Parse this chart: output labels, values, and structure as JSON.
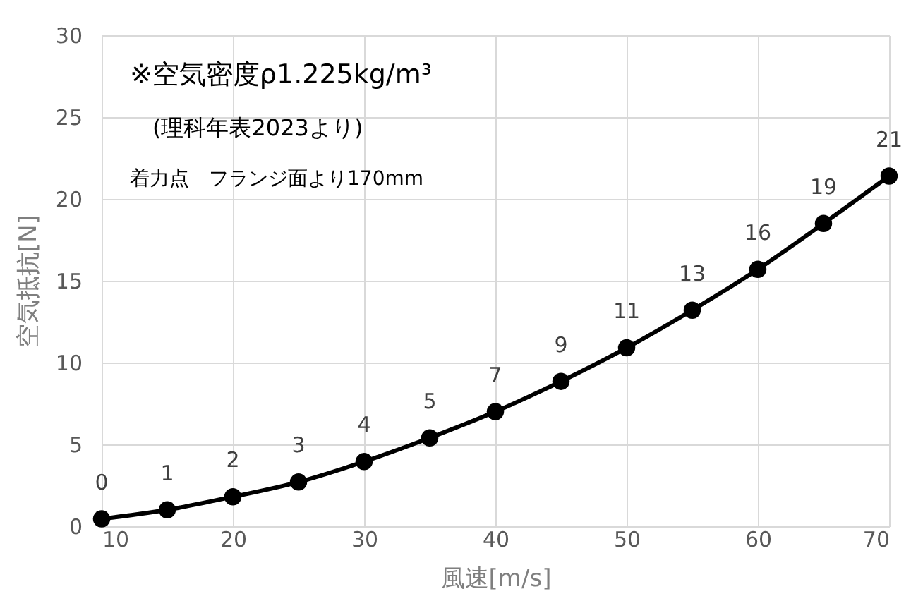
{
  "chart_data": {
    "type": "line",
    "xlabel": "風速[m/s]",
    "ylabel": "空気抵抗[N]",
    "x": [
      10,
      15,
      20,
      25,
      30,
      35,
      40,
      45,
      50,
      55,
      60,
      65,
      70
    ],
    "series": [
      {
        "color": "#000000",
        "values": [
          0.45,
          1.0,
          1.8,
          2.7,
          3.95,
          5.4,
          7.0,
          8.85,
          10.9,
          13.2,
          15.7,
          18.5,
          21.4
        ],
        "value_labels": [
          "0",
          "1",
          "2",
          "3",
          "4",
          "5",
          "7",
          "9",
          "11",
          "13",
          "16",
          "19",
          "21"
        ]
      }
    ],
    "xlim": [
      10,
      70
    ],
    "xticks": [
      10,
      20,
      30,
      40,
      50,
      60,
      70
    ],
    "ylim": [
      0,
      30
    ],
    "yticks": [
      0,
      5,
      10,
      15,
      20,
      25,
      30
    ],
    "grid": true,
    "marker": "circle",
    "line_style": "solid",
    "annotations": [
      "※空気密度ρ1.225kg/m³",
      "(理科年表2023より)",
      "着力点　フランジ面より170mm"
    ]
  }
}
